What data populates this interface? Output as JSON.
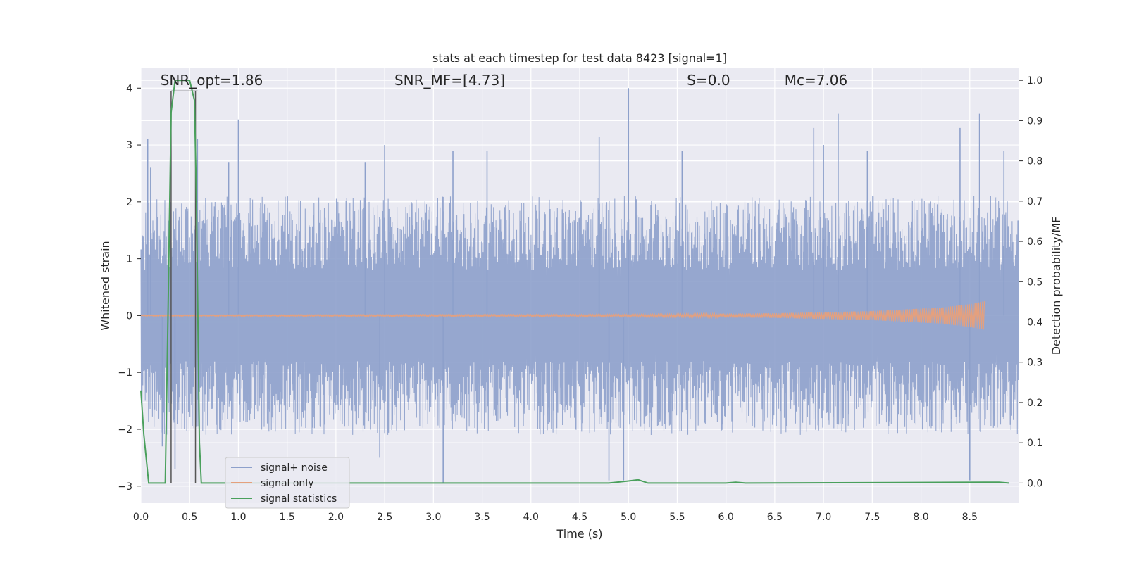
{
  "chart_data": {
    "type": "line",
    "title": "stats at each timestep for test data 8423 [signal=1]",
    "xlabel": "Time (s)",
    "ylabel": "Whitened strain",
    "y2label": "Detection probability/MF",
    "xlim": [
      0.0,
      9.0
    ],
    "ylim": [
      -3.3,
      4.35
    ],
    "y2lim": [
      -0.05,
      1.03
    ],
    "xticks": [
      0.0,
      0.5,
      1.0,
      1.5,
      2.0,
      2.5,
      3.0,
      3.5,
      4.0,
      4.5,
      5.0,
      5.5,
      6.0,
      6.5,
      7.0,
      7.5,
      8.0,
      8.5
    ],
    "xtick_labels": [
      "0.0",
      "0.5",
      "1.0",
      "1.5",
      "2.0",
      "2.5",
      "3.0",
      "3.5",
      "4.0",
      "4.5",
      "5.0",
      "5.5",
      "6.0",
      "6.5",
      "7.0",
      "7.5",
      "8.0",
      "8.5"
    ],
    "yticks": [
      -3,
      -2,
      -1,
      0,
      1,
      2,
      3,
      4
    ],
    "ytick_labels": [
      "−3",
      "−2",
      "−1",
      "0",
      "1",
      "2",
      "3",
      "4"
    ],
    "y2ticks": [
      0.0,
      0.1,
      0.2,
      0.3,
      0.4,
      0.5,
      0.6,
      0.7,
      0.8,
      0.9,
      1.0
    ],
    "y2tick_labels": [
      "0.0",
      "0.1",
      "0.2",
      "0.3",
      "0.4",
      "0.5",
      "0.6",
      "0.7",
      "0.8",
      "0.9",
      "1.0"
    ],
    "grid": true,
    "legend_position": "lower-left",
    "annotations": [
      {
        "label": "SNR_opt=1.86",
        "x": 0.2,
        "y": 4.1
      },
      {
        "label": "SNR_MF=[4.73]",
        "x": 2.6,
        "y": 4.1
      },
      {
        "label": "S=0.0",
        "x": 5.6,
        "y": 4.1
      },
      {
        "label": "Mc=7.06",
        "x": 6.6,
        "y": 4.1
      }
    ],
    "vertical_markers": [
      0.31,
      0.56
    ],
    "series": [
      {
        "name": "signal+ noise",
        "color": "#8da0cb",
        "envelope": {
          "t_start": 0.0,
          "t_end": 9.0,
          "upper_typical": 1.6,
          "lower_typical": -1.6,
          "peaks": [
            {
              "t": 0.07,
              "y": 3.1
            },
            {
              "t": 0.1,
              "y": 2.6
            },
            {
              "t": 0.22,
              "y": -2.3
            },
            {
              "t": 0.35,
              "y": -2.7
            },
            {
              "t": 0.58,
              "y": 3.1
            },
            {
              "t": 0.9,
              "y": 2.7
            },
            {
              "t": 1.0,
              "y": 3.45
            },
            {
              "t": 2.3,
              "y": 2.7
            },
            {
              "t": 2.45,
              "y": -2.5
            },
            {
              "t": 2.5,
              "y": 3.0
            },
            {
              "t": 3.1,
              "y": -2.95
            },
            {
              "t": 3.2,
              "y": 2.9
            },
            {
              "t": 3.55,
              "y": 2.9
            },
            {
              "t": 4.7,
              "y": 3.15
            },
            {
              "t": 4.8,
              "y": -2.9
            },
            {
              "t": 4.95,
              "y": -2.9
            },
            {
              "t": 5.0,
              "y": 4.0
            },
            {
              "t": 5.55,
              "y": 2.9
            },
            {
              "t": 6.9,
              "y": 3.3
            },
            {
              "t": 7.0,
              "y": 3.0
            },
            {
              "t": 7.15,
              "y": 3.55
            },
            {
              "t": 7.45,
              "y": 2.9
            },
            {
              "t": 8.4,
              "y": 3.3
            },
            {
              "t": 8.5,
              "y": -2.9
            },
            {
              "t": 8.6,
              "y": 3.55
            },
            {
              "t": 8.85,
              "y": 2.9
            }
          ]
        }
      },
      {
        "name": "signal only",
        "color": "#e5a07d",
        "envelope": [
          {
            "t": 0.0,
            "amp": 0.01
          },
          {
            "t": 5.0,
            "amp": 0.02
          },
          {
            "t": 6.5,
            "amp": 0.04
          },
          {
            "t": 7.5,
            "amp": 0.08
          },
          {
            "t": 8.2,
            "amp": 0.14
          },
          {
            "t": 8.5,
            "amp": 0.2
          },
          {
            "t": 8.65,
            "amp": 0.25
          }
        ],
        "t_end": 8.65
      },
      {
        "name": "signal statistics",
        "color": "#4aa05c",
        "axis": "right",
        "x": [
          0.0,
          0.03,
          0.08,
          0.2,
          0.25,
          0.28,
          0.31,
          0.35,
          0.45,
          0.5,
          0.55,
          0.57,
          0.6,
          0.62,
          0.7,
          4.8,
          5.0,
          5.1,
          5.2,
          5.4,
          6.0,
          6.1,
          6.2,
          8.8,
          8.9
        ],
        "values": [
          0.23,
          0.12,
          0.0,
          0.0,
          0.0,
          0.45,
          0.92,
          1.0,
          1.0,
          1.0,
          0.95,
          0.7,
          0.1,
          0.0,
          0.0,
          0.0,
          0.005,
          0.008,
          0.0,
          0.0,
          0.0,
          0.002,
          0.0,
          0.002,
          0.0
        ]
      }
    ]
  }
}
